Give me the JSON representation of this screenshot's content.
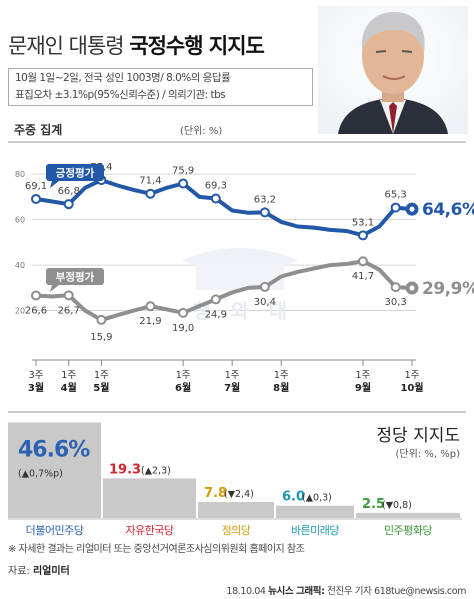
{
  "header": {
    "title_part1": "문재인 대통령",
    "title_part2": "국정수행 지지도",
    "info_line1": "10월 1일~2일, 전국 성인 1003명/ 8.0%의 응답률",
    "info_line2": "표집오차 ±3.1%p(95%신뢰수준) / 의뢰기관: tbs"
  },
  "colors": {
    "positive": "#2358a8",
    "negative": "#8f8f8f",
    "minju": "#2d63b3",
    "hanguk": "#d4242f",
    "uiui": "#d49a0a",
    "bareun": "#1a9ab0",
    "pyeonghwa": "#3a9a3a"
  },
  "chart_data": [
    {
      "type": "line",
      "title": "주중 집계",
      "unit": "(단위: %)",
      "x_ticks": [
        {
          "week": "3주",
          "month": "3월"
        },
        {
          "week": "1주",
          "month": "4월"
        },
        {
          "week": "1주",
          "month": "5월"
        },
        {
          "week": "1주",
          "month": "6월"
        },
        {
          "week": "1주",
          "month": "7월"
        },
        {
          "week": "1주",
          "month": "8월"
        },
        {
          "week": "1주",
          "month": "9월"
        },
        {
          "week": "1주",
          "month": "10월"
        }
      ],
      "y_ticks": [
        "80",
        "60",
        "40",
        "20"
      ],
      "ylim": [
        0,
        88
      ],
      "series": [
        {
          "name": "긍정평가",
          "values": [
            69.1,
            68.0,
            66.8,
            74.0,
            77.4,
            75.0,
            73.0,
            71.4,
            74.0,
            75.9,
            70.0,
            69.3,
            64.0,
            63.0,
            63.2,
            59.0,
            57.0,
            56.5,
            55.5,
            55.0,
            53.1,
            57.0,
            65.3,
            64.6
          ],
          "labels": [
            "69,1",
            "66,8",
            "77,4",
            "71,4",
            "75,9",
            "69,3",
            "63,2",
            "53,1",
            "65,3",
            "64,6%"
          ]
        },
        {
          "name": "부정평가",
          "values": [
            26.6,
            26.2,
            26.7,
            20.0,
            15.9,
            18.0,
            20.0,
            21.9,
            20.5,
            19.0,
            22.0,
            24.9,
            28.0,
            30.0,
            30.4,
            35.0,
            37.0,
            38.5,
            40.0,
            40.5,
            41.7,
            38.0,
            30.3,
            29.9
          ],
          "labels": [
            "26,6",
            "26,7",
            "15,9",
            "21,9",
            "19,0",
            "24,9",
            "30,4",
            "41,7",
            "30,3",
            "29,9%"
          ]
        }
      ],
      "watermark": [
        "청",
        "와",
        "대"
      ]
    },
    {
      "type": "bar",
      "title": "정당 지지도",
      "unit": "(단위: %, %p)",
      "categories": [
        "더불어민주당",
        "자유한국당",
        "정의당",
        "바른미래당",
        "민주평화당"
      ],
      "values": [
        46.6,
        19.3,
        7.8,
        6.0,
        2.5
      ],
      "value_labels": [
        "46.6%",
        "19.3",
        "7.8",
        "6.0",
        "2.5"
      ],
      "changes": [
        "(▲0,7%p)",
        "(▲2,3)",
        "(▼2,4)",
        "(▲0,3)",
        "(▼0,8)"
      ]
    }
  ],
  "footer": {
    "note": "※ 자세한 결과는 리얼미터 또는 중앙선거여론조사심의위원회 홈페이지 참조",
    "source_prefix": "자료: ",
    "source_name": "리얼미터",
    "date": "18.10.04",
    "agency": "뉴시스 그래픽:",
    "author": "전진우 기자 618tue@newsis.com"
  }
}
